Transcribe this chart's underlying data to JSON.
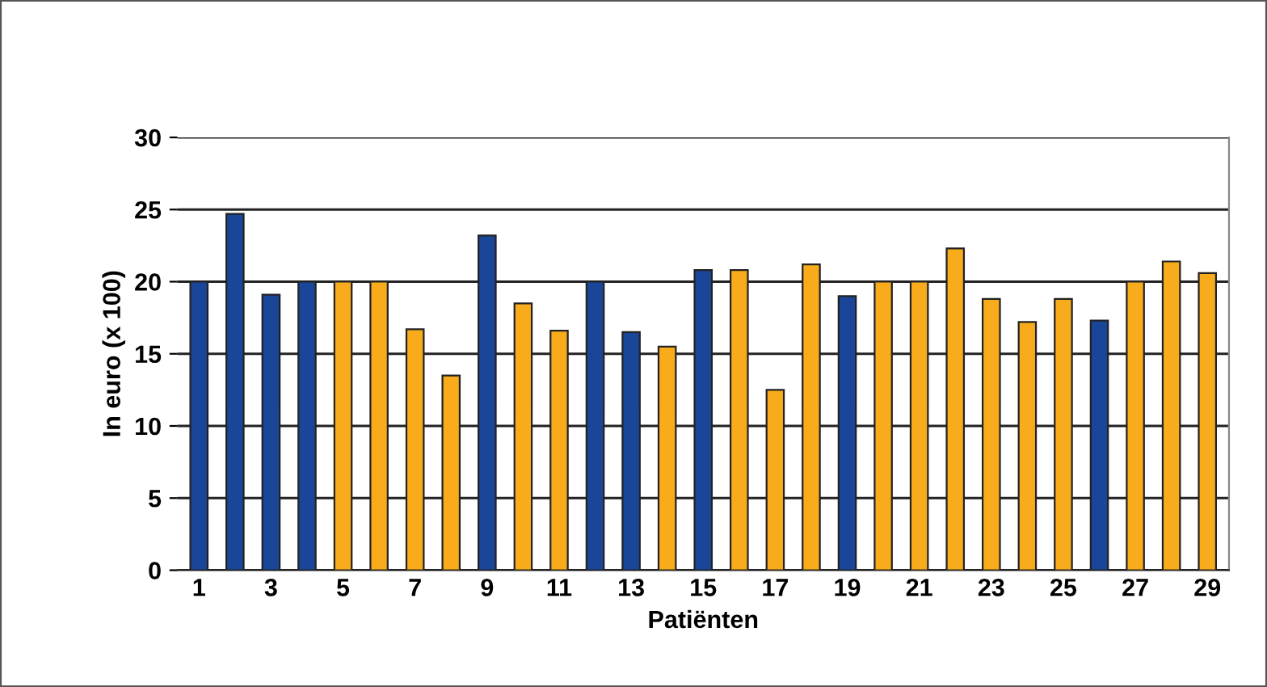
{
  "chart_data": {
    "type": "bar",
    "xlabel": "Patiënten",
    "ylabel": "In euro (x 100)",
    "categories": [
      "1",
      null,
      "3",
      null,
      "5",
      null,
      "7",
      null,
      "9",
      null,
      "11",
      null,
      "13",
      null,
      "15",
      null,
      "17",
      null,
      "19",
      null,
      "21",
      null,
      "23",
      null,
      "25",
      null,
      "27",
      null,
      "29"
    ],
    "values": [
      20,
      24.7,
      19.1,
      20,
      20,
      20,
      16.7,
      13.5,
      23.2,
      18.5,
      16.6,
      20,
      16.5,
      15.5,
      20.8,
      20.8,
      12.5,
      21.2,
      19,
      20,
      20,
      22.3,
      18.8,
      17.2,
      18.8,
      17.3,
      20,
      21.4,
      20.6
    ],
    "colors": [
      "#1a4699",
      "#1a4699",
      "#1a4699",
      "#1a4699",
      "#f9ac1b",
      "#f9ac1b",
      "#f9ac1b",
      "#f9ac1b",
      "#1a4699",
      "#f9ac1b",
      "#f9ac1b",
      "#1a4699",
      "#1a4699",
      "#f9ac1b",
      "#1a4699",
      "#f9ac1b",
      "#f9ac1b",
      "#f9ac1b",
      "#1a4699",
      "#f9ac1b",
      "#f9ac1b",
      "#f9ac1b",
      "#f9ac1b",
      "#f9ac1b",
      "#f9ac1b",
      "#1a4699",
      "#f9ac1b",
      "#f9ac1b",
      "#f9ac1b"
    ],
    "ylim": [
      0,
      30
    ],
    "yticks": [
      0,
      5,
      10,
      15,
      20,
      25,
      30
    ],
    "grid": "y"
  }
}
